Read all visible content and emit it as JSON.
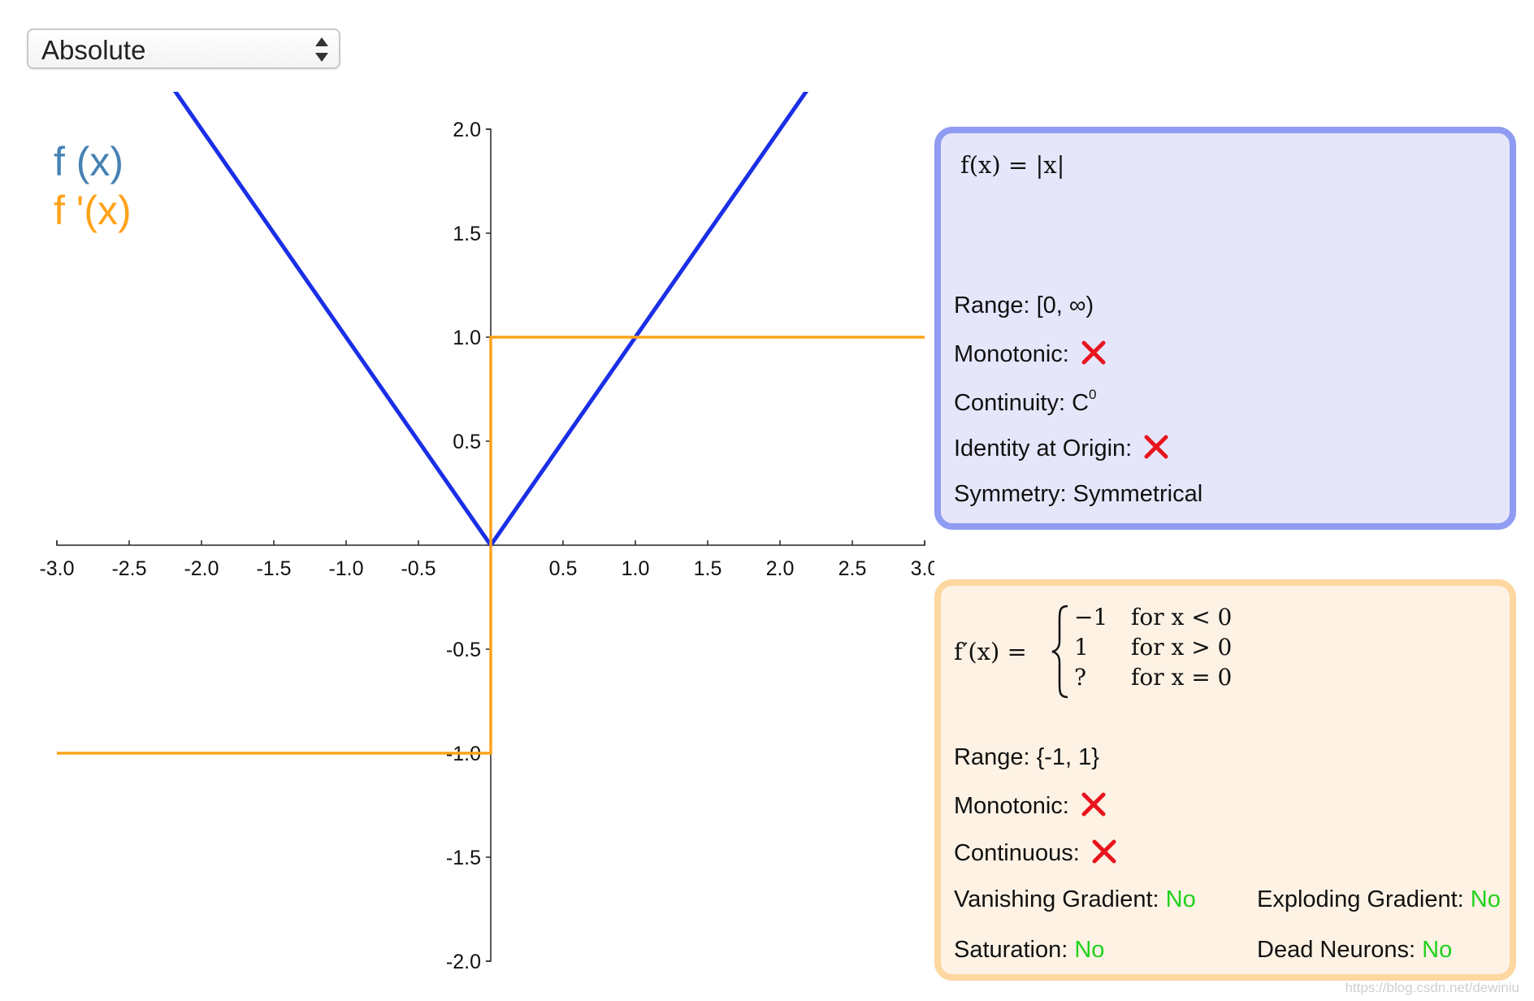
{
  "selector": {
    "selected": "Absolute"
  },
  "legend": {
    "f": "f (x)",
    "df": "f '(x)"
  },
  "colors": {
    "f_line": "#1a2fe6",
    "df_line": "#ffa21a",
    "legend_f": "#4682b4",
    "legend_df": "#ffa21a",
    "green": "#22d11c",
    "cross": "#e8141e"
  },
  "chart_data": {
    "type": "line",
    "xlim": [
      -3,
      3
    ],
    "ylim": [
      -2,
      2
    ],
    "x_ticks": [
      "-3.0",
      "-2.5",
      "-2.0",
      "-1.5",
      "-1.0",
      "-0.5",
      "0.5",
      "1.0",
      "1.5",
      "2.0",
      "2.5",
      "3.0"
    ],
    "y_ticks": [
      "2.0",
      "1.5",
      "1.0",
      "0.5",
      "-0.5",
      "-1.0",
      "-1.5",
      "-2.0"
    ],
    "series": [
      {
        "name": "f (x)",
        "x": [
          -2.2,
          0,
          2.2
        ],
        "y": [
          2.2,
          0,
          2.2
        ]
      },
      {
        "name": "f '(x)",
        "x": [
          -3,
          0,
          0,
          3
        ],
        "y": [
          -1,
          -1,
          1,
          1
        ]
      }
    ]
  },
  "f_panel": {
    "formula": {
      "lhs": "f(x) = |x|"
    },
    "range_label": "Range:",
    "range_value": "[0, ∞)",
    "monotonic_label": "Monotonic:",
    "continuity_label": "Continuity:",
    "continuity_value": "C",
    "continuity_sup": "0",
    "identity_label": "Identity at Origin:",
    "symmetry_label": "Symmetry:",
    "symmetry_value": "Symmetrical"
  },
  "df_panel": {
    "formula_lhs": "f′(x) =",
    "cases": [
      {
        "value": "−1",
        "condition": "for x < 0"
      },
      {
        "value": "1",
        "condition": "for x > 0"
      },
      {
        "value": "?",
        "condition": "for x = 0"
      }
    ],
    "range_label": "Range:",
    "range_value": "{-1, 1}",
    "monotonic_label": "Monotonic:",
    "continuous_label": "Continuous:",
    "vanishing_label": "Vanishing Gradient:",
    "vanishing_value": "No",
    "exploding_label": "Exploding Gradient:",
    "exploding_value": "No",
    "saturation_label": "Saturation:",
    "saturation_value": "No",
    "dead_label": "Dead Neurons:",
    "dead_value": "No"
  },
  "watermark": "https://blog.csdn.net/dewiniu"
}
